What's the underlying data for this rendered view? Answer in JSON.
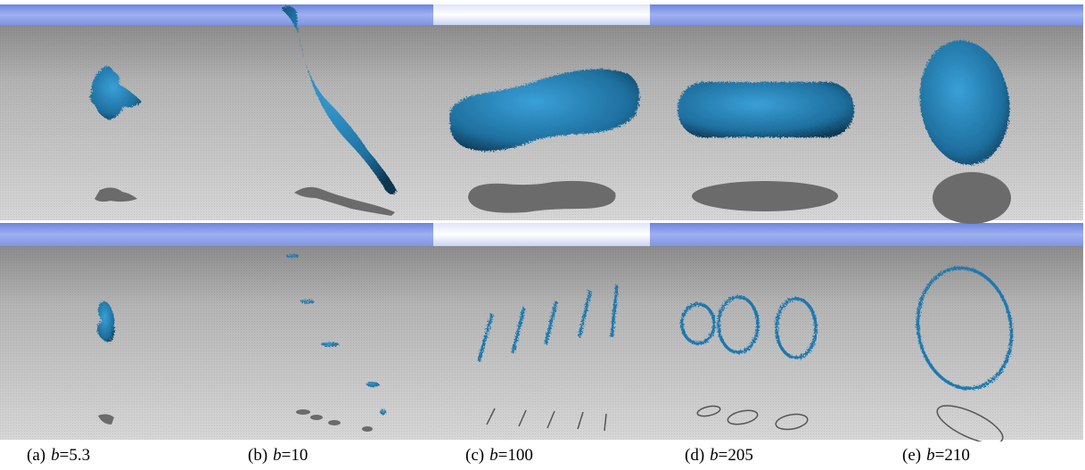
{
  "figure": {
    "panels": [
      {
        "tag": "(a)",
        "var": "b",
        "rel": "=",
        "value": "5.3"
      },
      {
        "tag": "(b)",
        "var": "b",
        "rel": "=",
        "value": "10"
      },
      {
        "tag": "(c)",
        "var": "b",
        "rel": "=",
        "value": "100"
      },
      {
        "tag": "(d)",
        "var": "b",
        "rel": "=",
        "value": "205"
      },
      {
        "tag": "(e)",
        "var": "b",
        "rel": "=",
        "value": "210"
      }
    ]
  }
}
